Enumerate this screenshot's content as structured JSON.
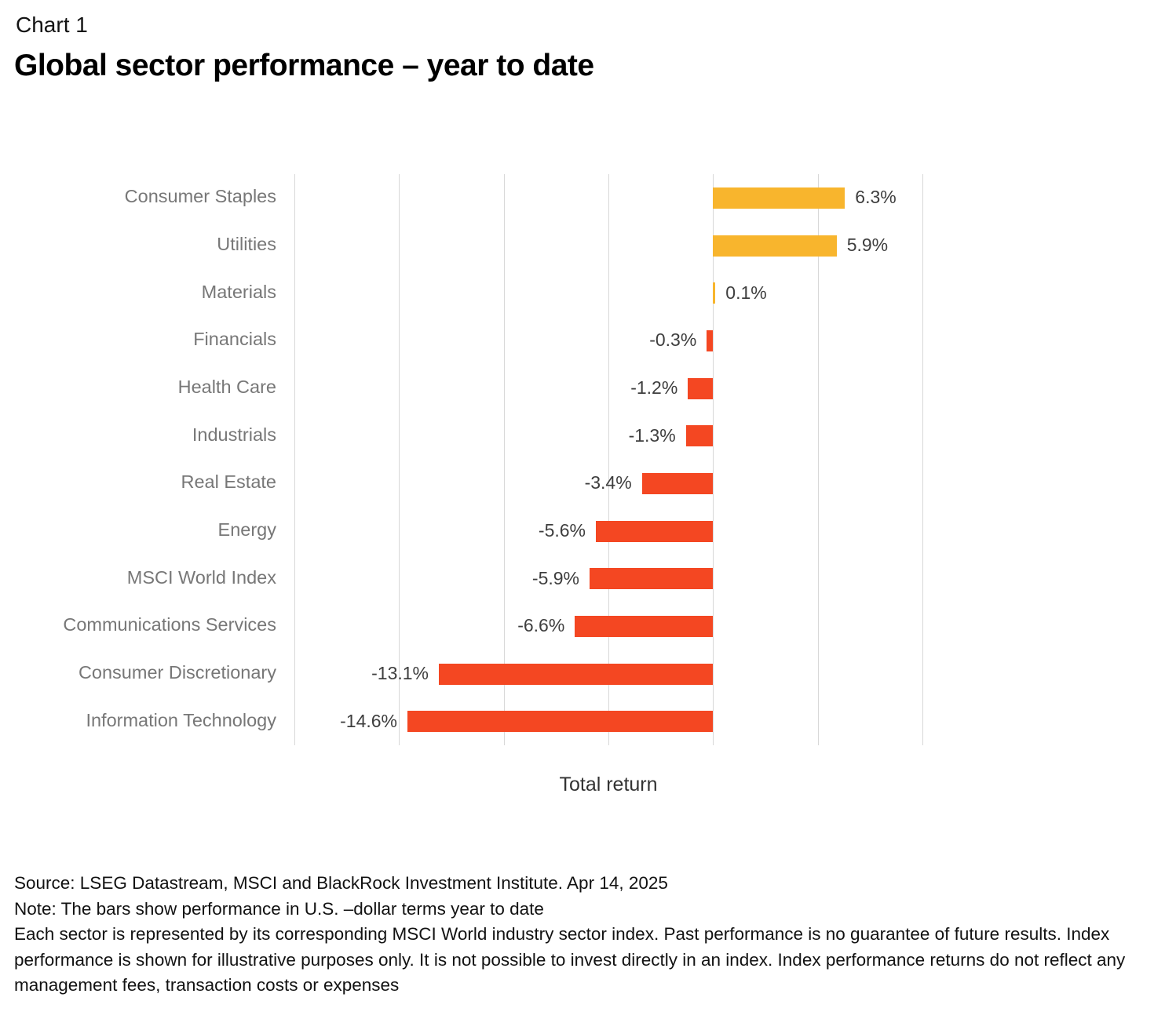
{
  "header": {
    "eyebrow": "Chart 1",
    "title": "Global sector performance – year to date"
  },
  "chart_data": {
    "type": "bar",
    "orientation": "horizontal",
    "categories": [
      "Consumer Staples",
      "Utilities",
      "Materials",
      "Financials",
      "Health Care",
      "Industrials",
      "Real Estate",
      "Energy",
      "MSCI World Index",
      "Communications Services",
      "Consumer Discretionary",
      "Information Technology"
    ],
    "values": [
      6.3,
      5.9,
      0.1,
      -0.3,
      -1.2,
      -1.3,
      -3.4,
      -5.6,
      -5.9,
      -6.6,
      -13.1,
      -14.6
    ],
    "value_labels": [
      "6.3%",
      "5.9%",
      "0.1%",
      "-0.3%",
      "-1.2%",
      "-1.3%",
      "-3.4%",
      "-5.6%",
      "-5.9%",
      "-6.6%",
      "-13.1%",
      "-14.6%"
    ],
    "xlabel": "Total return",
    "xlim": [
      -20,
      13
    ],
    "gridlines": [
      -20,
      -15,
      -10,
      -5,
      0,
      5,
      10
    ],
    "grid_on": true,
    "legend": "none",
    "positive_color": "#f8b52d",
    "negative_color": "#f44722",
    "grid_color": "#d8d8d8"
  },
  "footer": {
    "source": "Source: LSEG Datastream, MSCI and BlackRock Investment Institute. Apr 14, 2025",
    "note": "Note: The bars show performance in U.S. –dollar terms year to date",
    "disclaimer": "Each sector is represented by its corresponding MSCI World industry sector index. Past performance is no guarantee of future results. Index performance is shown for illustrative purposes only. It is not possible to invest directly in an index. Index performance returns do not reflect any management fees, transaction costs or expenses"
  }
}
